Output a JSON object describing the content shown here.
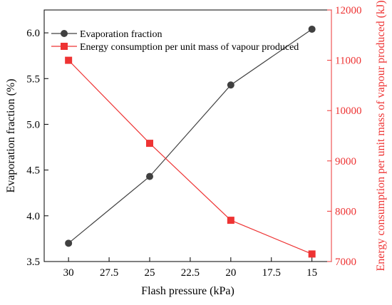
{
  "chart_data": {
    "type": "line",
    "x": [
      30,
      25,
      20,
      15
    ],
    "xlim": [
      31.5,
      13.8
    ],
    "xticks": [
      30,
      27.5,
      25,
      22.5,
      20,
      17.5,
      15
    ],
    "xtick_labels": [
      "30",
      "27.5",
      "25",
      "22.5",
      "20",
      "17.5",
      "15"
    ],
    "xlabel": "Flash pressure (kPa)",
    "ylabel_left": "Evaporation fraction (%)",
    "ylabel_right": "Energy consumption per unit mass of vapour produced (kJ)",
    "ylim_left": [
      3.5,
      6.25
    ],
    "yticks_left": [
      3.5,
      4.0,
      4.5,
      5.0,
      5.5,
      6.0
    ],
    "ytick_labels_left": [
      "3.5",
      "4.0",
      "4.5",
      "5.0",
      "5.5",
      "6.0"
    ],
    "ylim_right": [
      7000,
      12000
    ],
    "yticks_right": [
      7000,
      8000,
      9000,
      10000,
      11000,
      12000
    ],
    "ytick_labels_right": [
      "7000",
      "8000",
      "9000",
      "10000",
      "11000",
      "12000"
    ],
    "legend_position": "top-left",
    "grid": false,
    "series": [
      {
        "name": "Evaporation fraction",
        "axis": "left",
        "marker": "circle",
        "color": "#404040",
        "values": [
          3.7,
          4.43,
          5.43,
          6.04
        ]
      },
      {
        "name": "Energy consumption per unit mass of vapour produced",
        "axis": "right",
        "marker": "square",
        "color": "#ee3333",
        "values": [
          11000,
          9350,
          7820,
          7150
        ]
      }
    ]
  }
}
